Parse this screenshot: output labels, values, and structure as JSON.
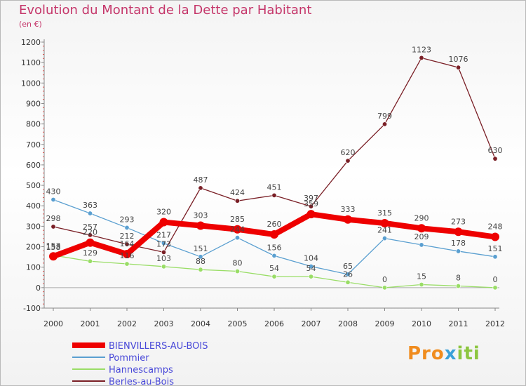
{
  "title": "Evolution du Montant de la Dette par Habitant",
  "subtitle": "(en €)",
  "logo": {
    "p1": "Pro",
    "p2": "x",
    "p3": "iti"
  },
  "chart_data": {
    "type": "line",
    "title": "Evolution du Montant de la Dette par Habitant",
    "ylabel": "(en €)",
    "xlabel": "",
    "x": [
      "2000",
      "2001",
      "2002",
      "2003",
      "2004",
      "2005",
      "2006",
      "2007",
      "2008",
      "2009",
      "2010",
      "2011",
      "2012"
    ],
    "ylim": [
      -100,
      1200
    ],
    "yticks": [
      -100,
      0,
      100,
      200,
      300,
      400,
      500,
      600,
      700,
      800,
      900,
      1000,
      1100,
      1200
    ],
    "grid": "none",
    "legend_position": "bottom-left",
    "series": [
      {
        "name": "BIENVILLERS-AU-BOIS",
        "color": "#ee0000",
        "style": "thick",
        "values": [
          153,
          220,
          164,
          320,
          303,
          285,
          260,
          359,
          333,
          315,
          290,
          273,
          248
        ]
      },
      {
        "name": "Pommier",
        "color": "#5a9fd0",
        "style": "thin",
        "values": [
          430,
          363,
          293,
          217,
          151,
          244,
          156,
          104,
          65,
          241,
          209,
          178,
          151
        ]
      },
      {
        "name": "Hannescamps",
        "color": "#99dd66",
        "style": "thin",
        "values": [
          158,
          129,
          116,
          103,
          88,
          80,
          54,
          54,
          26,
          0,
          15,
          8,
          0
        ]
      },
      {
        "name": "Berles-au-Bois",
        "color": "#7a1f26",
        "style": "thin",
        "values": [
          298,
          257,
          212,
          173,
          487,
          424,
          451,
          397,
          620,
          799,
          1123,
          1076,
          630
        ]
      }
    ]
  }
}
